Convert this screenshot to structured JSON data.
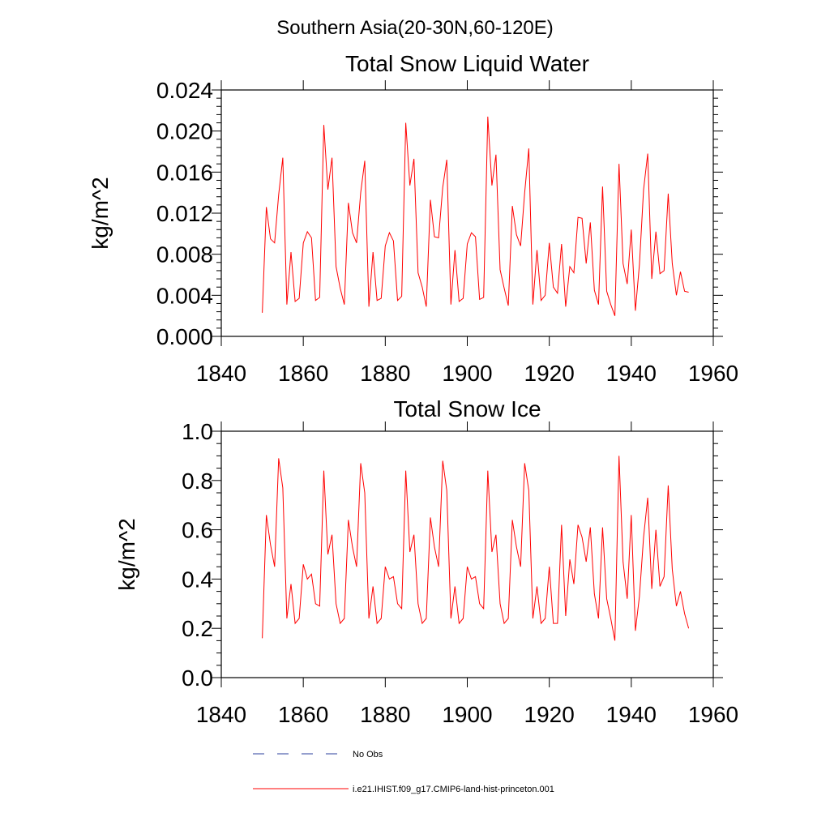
{
  "figure": {
    "title": "Southern Asia(20-30N,60-120E)"
  },
  "colors": {
    "series": "#ff0000",
    "obs": "#2b3f9e",
    "axis": "#000000"
  },
  "chart_data": [
    {
      "type": "line",
      "title": "Total Snow Liquid Water",
      "xlabel": "",
      "ylabel": "kg/m^2",
      "xlim": [
        1840,
        1960
      ],
      "ylim": [
        0,
        0.024
      ],
      "xticks": [
        1840,
        1860,
        1880,
        1900,
        1920,
        1940,
        1960
      ],
      "yticks": [
        0,
        0.004,
        0.008,
        0.012,
        0.016,
        0.02,
        0.024
      ],
      "xtick_labels": [
        "1840",
        "1860",
        "1880",
        "1900",
        "1920",
        "1940",
        "1960"
      ],
      "ytick_labels": [
        "0.000",
        "0.004",
        "0.008",
        "0.012",
        "0.016",
        "0.020",
        "0.024"
      ],
      "grid": false,
      "series": [
        {
          "name": "i.e21.IHIST.f09_g17.CMIP6-land-hist-princeton.001",
          "x": [
            1850,
            1851,
            1852,
            1853,
            1854,
            1855,
            1856,
            1857,
            1858,
            1859,
            1860,
            1861,
            1862,
            1863,
            1864,
            1865,
            1866,
            1867,
            1868,
            1869,
            1870,
            1871,
            1872,
            1873,
            1874,
            1875,
            1876,
            1877,
            1878,
            1879,
            1880,
            1881,
            1882,
            1883,
            1884,
            1885,
            1886,
            1887,
            1888,
            1889,
            1890,
            1891,
            1892,
            1893,
            1894,
            1895,
            1896,
            1897,
            1898,
            1899,
            1900,
            1901,
            1902,
            1903,
            1904,
            1905,
            1906,
            1907,
            1908,
            1909,
            1910,
            1911,
            1912,
            1913,
            1914,
            1915,
            1916,
            1917,
            1918,
            1919,
            1920,
            1921,
            1922,
            1923,
            1924,
            1925,
            1926,
            1927,
            1928,
            1929,
            1930,
            1931,
            1932,
            1933,
            1934,
            1935,
            1936,
            1937,
            1938,
            1939,
            1940,
            1941,
            1942,
            1943,
            1944,
            1945,
            1946,
            1947,
            1948,
            1949,
            1950,
            1951,
            1952,
            1953,
            1954
          ],
          "values": [
            0.0023,
            0.0126,
            0.0095,
            0.0091,
            0.0138,
            0.0174,
            0.0031,
            0.0082,
            0.0034,
            0.0037,
            0.0091,
            0.0102,
            0.0096,
            0.0035,
            0.0038,
            0.0206,
            0.0143,
            0.0174,
            0.0068,
            0.0047,
            0.0031,
            0.013,
            0.0101,
            0.0091,
            0.014,
            0.0171,
            0.0029,
            0.0082,
            0.0035,
            0.0037,
            0.0088,
            0.0101,
            0.0093,
            0.0035,
            0.0039,
            0.0208,
            0.0147,
            0.0173,
            0.0062,
            0.0048,
            0.0029,
            0.0133,
            0.0097,
            0.0096,
            0.0145,
            0.0172,
            0.0031,
            0.0084,
            0.0034,
            0.0037,
            0.009,
            0.0101,
            0.0097,
            0.0036,
            0.0038,
            0.0214,
            0.0147,
            0.0177,
            0.0065,
            0.0047,
            0.003,
            0.0127,
            0.0099,
            0.0088,
            0.014,
            0.0183,
            0.0031,
            0.0084,
            0.0035,
            0.004,
            0.0091,
            0.0048,
            0.0042,
            0.009,
            0.0029,
            0.0068,
            0.0062,
            0.0116,
            0.0115,
            0.0071,
            0.0111,
            0.0045,
            0.0031,
            0.0146,
            0.0044,
            0.0031,
            0.002,
            0.0168,
            0.0071,
            0.0051,
            0.0104,
            0.0025,
            0.007,
            0.0143,
            0.0178,
            0.0056,
            0.0102,
            0.0061,
            0.0064,
            0.0139,
            0.0071,
            0.004,
            0.0063,
            0.0044,
            0.0043
          ]
        }
      ]
    },
    {
      "type": "line",
      "title": "Total Snow Ice",
      "xlabel": "",
      "ylabel": "kg/m^2",
      "xlim": [
        1840,
        1960
      ],
      "ylim": [
        0,
        1.0
      ],
      "xticks": [
        1840,
        1860,
        1880,
        1900,
        1920,
        1940,
        1960
      ],
      "yticks": [
        0,
        0.2,
        0.4,
        0.6,
        0.8,
        1.0
      ],
      "xtick_labels": [
        "1840",
        "1860",
        "1880",
        "1900",
        "1920",
        "1940",
        "1960"
      ],
      "ytick_labels": [
        "0.0",
        "0.2",
        "0.4",
        "0.6",
        "0.8",
        "1.0"
      ],
      "grid": false,
      "series": [
        {
          "name": "i.e21.IHIST.f09_g17.CMIP6-land-hist-princeton.001",
          "x": [
            1850,
            1851,
            1852,
            1853,
            1854,
            1855,
            1856,
            1857,
            1858,
            1859,
            1860,
            1861,
            1862,
            1863,
            1864,
            1865,
            1866,
            1867,
            1868,
            1869,
            1870,
            1871,
            1872,
            1873,
            1874,
            1875,
            1876,
            1877,
            1878,
            1879,
            1880,
            1881,
            1882,
            1883,
            1884,
            1885,
            1886,
            1887,
            1888,
            1889,
            1890,
            1891,
            1892,
            1893,
            1894,
            1895,
            1896,
            1897,
            1898,
            1899,
            1900,
            1901,
            1902,
            1903,
            1904,
            1905,
            1906,
            1907,
            1908,
            1909,
            1910,
            1911,
            1912,
            1913,
            1914,
            1915,
            1916,
            1917,
            1918,
            1919,
            1920,
            1921,
            1922,
            1923,
            1924,
            1925,
            1926,
            1927,
            1928,
            1929,
            1930,
            1931,
            1932,
            1933,
            1934,
            1935,
            1936,
            1937,
            1938,
            1939,
            1940,
            1941,
            1942,
            1943,
            1944,
            1945,
            1946,
            1947,
            1948,
            1949,
            1950,
            1951,
            1952,
            1953,
            1954
          ],
          "values": [
            0.16,
            0.66,
            0.54,
            0.45,
            0.89,
            0.77,
            0.24,
            0.38,
            0.22,
            0.24,
            0.46,
            0.4,
            0.42,
            0.3,
            0.29,
            0.84,
            0.5,
            0.58,
            0.3,
            0.22,
            0.24,
            0.64,
            0.53,
            0.45,
            0.87,
            0.75,
            0.24,
            0.37,
            0.22,
            0.24,
            0.45,
            0.4,
            0.41,
            0.3,
            0.28,
            0.84,
            0.51,
            0.58,
            0.3,
            0.22,
            0.24,
            0.65,
            0.53,
            0.45,
            0.88,
            0.76,
            0.24,
            0.37,
            0.22,
            0.24,
            0.45,
            0.4,
            0.41,
            0.3,
            0.28,
            0.84,
            0.51,
            0.58,
            0.3,
            0.22,
            0.24,
            0.64,
            0.53,
            0.45,
            0.87,
            0.76,
            0.24,
            0.37,
            0.22,
            0.24,
            0.45,
            0.22,
            0.22,
            0.62,
            0.25,
            0.48,
            0.38,
            0.62,
            0.57,
            0.47,
            0.61,
            0.34,
            0.24,
            0.61,
            0.32,
            0.24,
            0.15,
            0.9,
            0.47,
            0.32,
            0.66,
            0.19,
            0.33,
            0.57,
            0.73,
            0.36,
            0.6,
            0.37,
            0.41,
            0.78,
            0.44,
            0.29,
            0.35,
            0.26,
            0.2
          ]
        }
      ]
    }
  ],
  "legend": {
    "placement": "bottom",
    "items": [
      {
        "label": "No Obs",
        "style": "dashed",
        "color_key": "obs"
      },
      {
        "label": "i.e21.IHIST.f09_g17.CMIP6-land-hist-princeton.001",
        "style": "solid",
        "color_key": "series"
      }
    ]
  }
}
